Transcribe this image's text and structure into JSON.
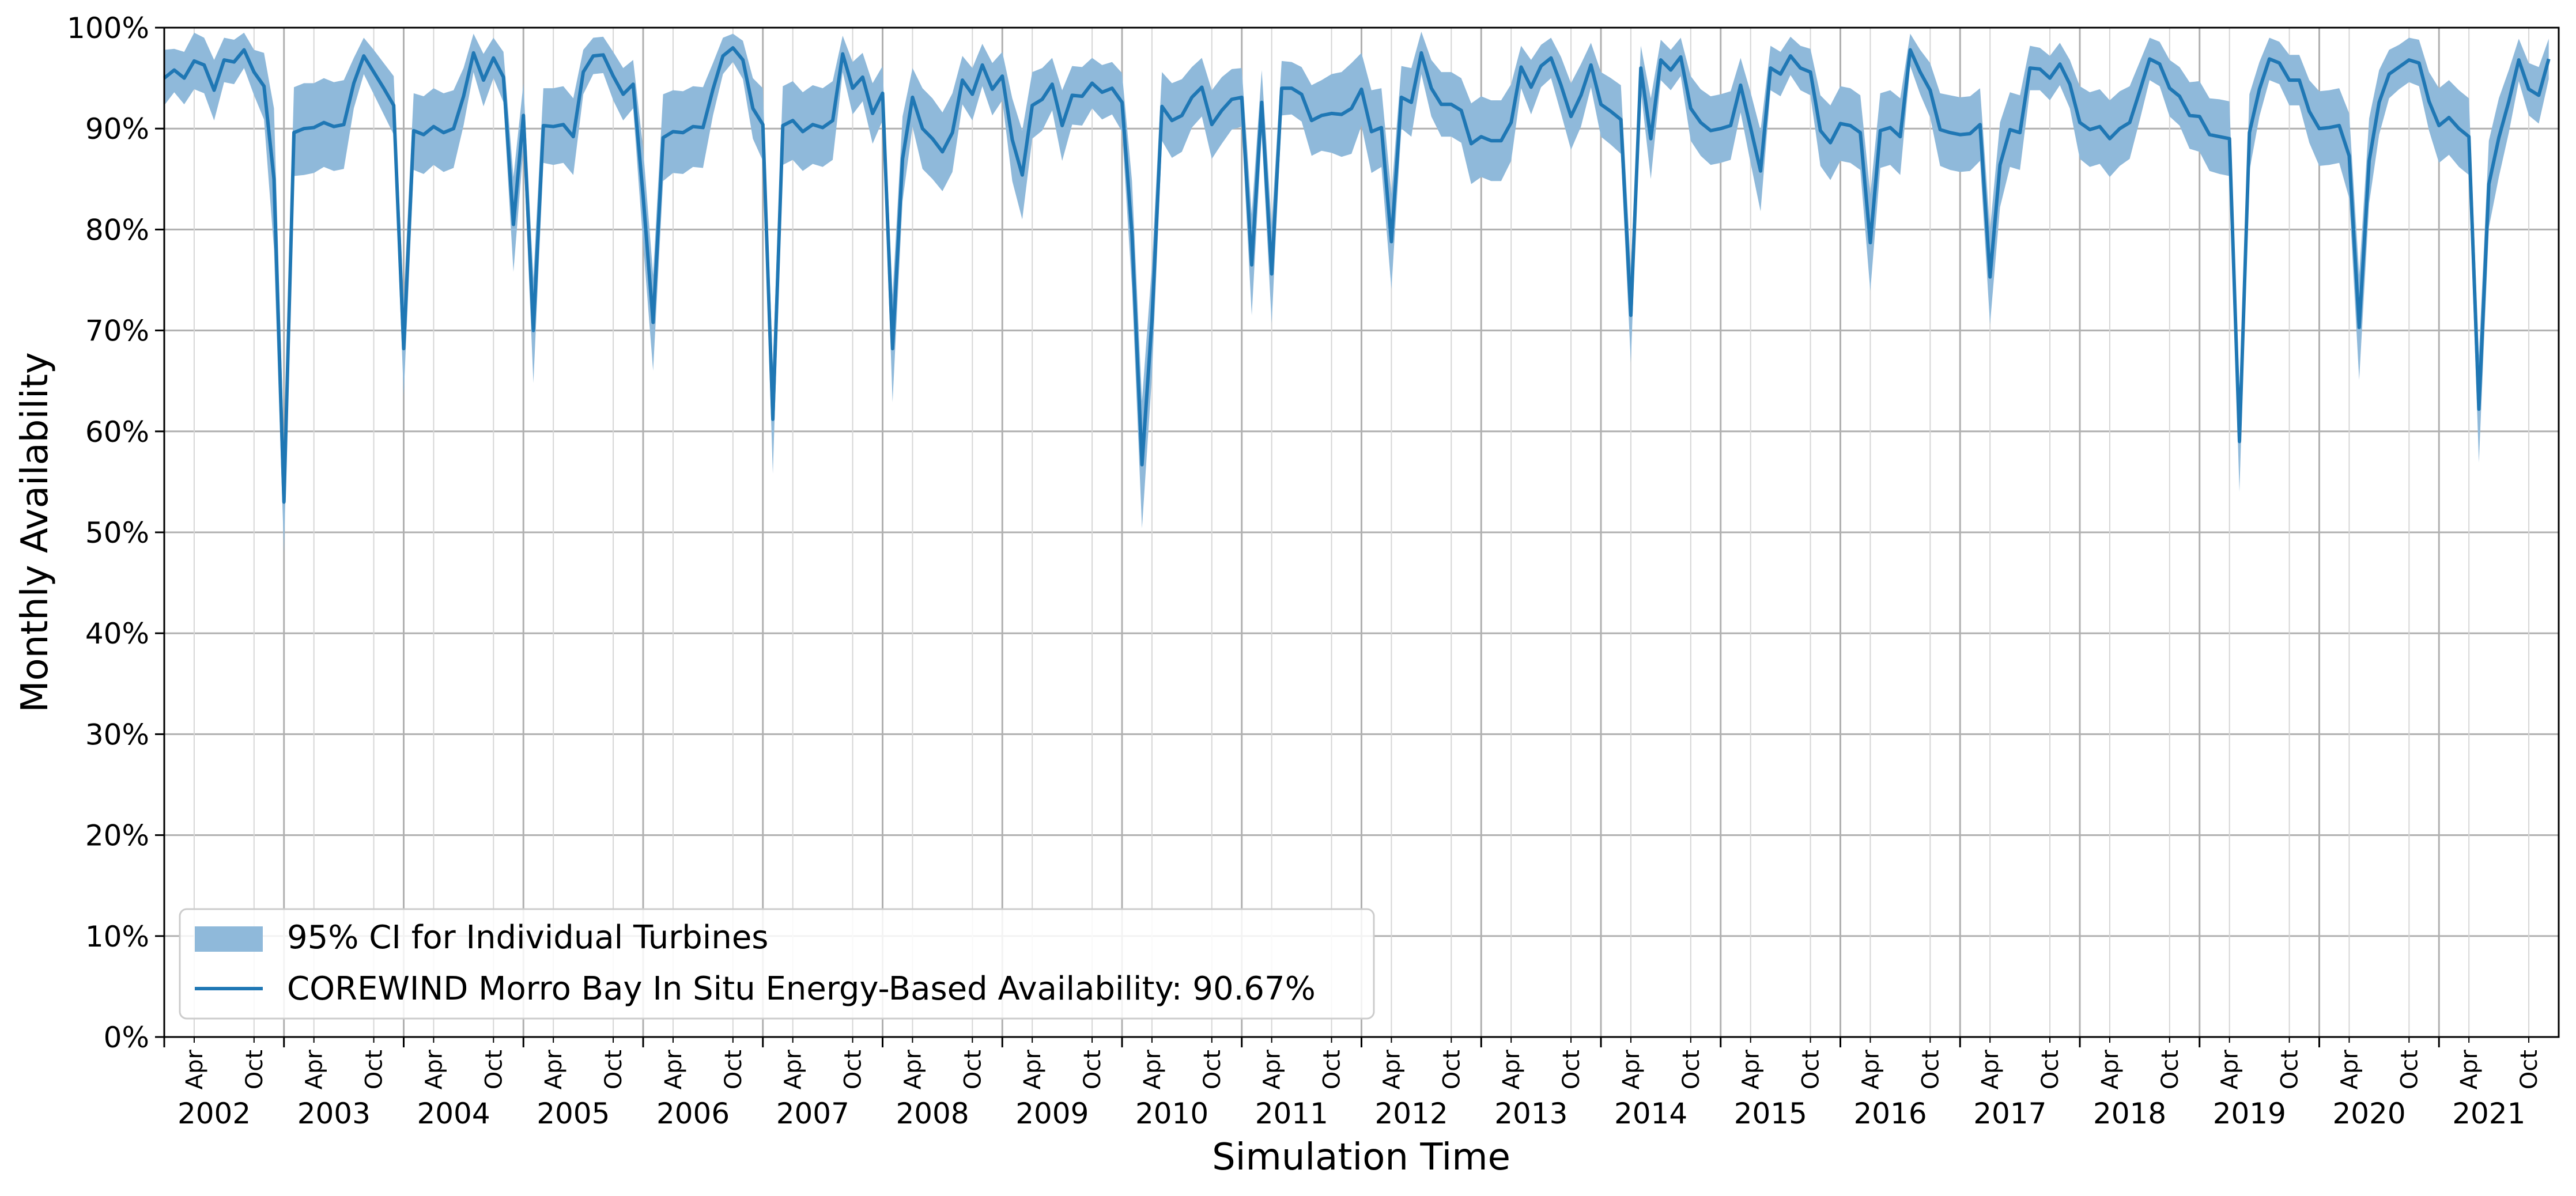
{
  "chart_data": {
    "type": "line",
    "xlabel": "Simulation Time",
    "ylabel": "Monthly Availability",
    "x_range": [
      "2002-01",
      "2021-12"
    ],
    "ylim": [
      0,
      100
    ],
    "y_ticks": [
      "0%",
      "10%",
      "20%",
      "30%",
      "40%",
      "50%",
      "60%",
      "70%",
      "80%",
      "90%",
      "100%"
    ],
    "month_tick_labels": {
      "apr": "Apr",
      "oct": "Oct"
    },
    "years": [
      "2002",
      "2003",
      "2004",
      "2005",
      "2006",
      "2007",
      "2008",
      "2009",
      "2010",
      "2011",
      "2012",
      "2013",
      "2014",
      "2015",
      "2016",
      "2017",
      "2018",
      "2019",
      "2020",
      "2021"
    ],
    "grid": true,
    "legend": {
      "placement": "lower-left",
      "band_label": "95% CI for Individual Turbines",
      "line_label": "COREWIND Morro Bay In Situ Energy-Based Availability: 90.67%"
    },
    "colors": {
      "line": "#1f77b4",
      "band": "#8fb9da",
      "grid": "#b0b0b0"
    },
    "series": [
      {
        "kind": "line",
        "values": [
          95.0,
          95.8,
          95.0,
          96.7,
          96.3,
          93.8,
          96.8,
          96.6,
          97.8,
          95.6,
          94.2,
          85.0,
          53.0,
          89.6,
          90.0,
          90.1,
          90.6,
          90.2,
          90.4,
          94.5,
          97.2,
          95.6,
          94.0,
          92.3,
          68.2,
          89.8,
          89.4,
          90.2,
          89.6,
          90.0,
          93.2,
          97.5,
          94.8,
          97.0,
          95.1,
          80.5,
          91.3,
          70.0,
          90.3,
          90.2,
          90.4,
          89.2,
          95.6,
          97.2,
          97.3,
          95.2,
          93.4,
          94.4,
          83.3,
          70.8,
          89.1,
          89.7,
          89.6,
          90.2,
          90.1,
          93.9,
          97.2,
          98.0,
          96.8,
          92.0,
          90.4,
          61.2,
          90.3,
          90.8,
          89.7,
          90.4,
          90.1,
          90.8,
          97.4,
          94.0,
          95.1,
          91.5,
          93.5,
          68.2,
          87.0,
          93.1,
          90.0,
          89.0,
          87.7,
          89.6,
          94.8,
          93.4,
          96.3,
          93.9,
          95.2,
          88.9,
          85.4,
          92.3,
          92.9,
          94.4,
          90.3,
          93.3,
          93.2,
          94.5,
          93.6,
          94.0,
          92.6,
          79.5,
          56.7,
          71.0,
          92.2,
          90.8,
          91.3,
          93.1,
          94.1,
          90.4,
          91.8,
          92.9,
          93.1,
          76.5,
          92.6,
          75.6,
          94.0,
          94.0,
          93.4,
          90.8,
          91.3,
          91.5,
          91.4,
          92.0,
          93.9,
          89.7,
          90.1,
          78.8,
          93.1,
          92.6,
          97.5,
          94.0,
          92.4,
          92.4,
          91.8,
          88.5,
          89.2,
          88.8,
          88.8,
          90.6,
          96.1,
          94.1,
          96.2,
          97.0,
          94.3,
          91.2,
          93.3,
          96.3,
          92.4,
          91.7,
          90.9,
          71.5,
          96.0,
          89.0,
          96.8,
          95.8,
          97.1,
          92.0,
          90.6,
          89.8,
          90.0,
          90.3,
          94.3,
          90.1,
          85.8,
          96.0,
          95.4,
          97.2,
          96.0,
          95.6,
          89.8,
          88.6,
          90.5,
          90.3,
          89.6,
          78.7,
          89.8,
          90.1,
          89.2,
          97.8,
          95.6,
          93.8,
          89.9,
          89.6,
          89.4,
          89.5,
          90.4,
          75.3,
          86.4,
          89.9,
          89.6,
          96.0,
          95.9,
          95.0,
          96.4,
          94.4,
          90.6,
          89.9,
          90.2,
          89.0,
          90.0,
          90.6,
          93.7,
          96.9,
          96.4,
          94.0,
          93.2,
          91.3,
          91.2,
          89.4,
          89.2,
          89.0,
          59.0,
          89.6,
          93.9,
          96.9,
          96.5,
          94.8,
          94.8,
          91.7,
          90.0,
          90.1,
          90.3,
          87.3,
          70.3,
          86.8,
          92.6,
          95.4,
          96.1,
          96.8,
          96.5,
          92.7,
          90.3,
          91.1,
          90.0,
          89.2,
          62.2,
          84.5,
          89.1,
          92.7,
          96.8,
          93.9,
          93.3,
          96.9
        ]
      },
      {
        "kind": "band",
        "upper": [
          97.8,
          97.9,
          97.6,
          99.5,
          99.0,
          96.8,
          99.0,
          98.8,
          99.5,
          97.8,
          97.5,
          92.0,
          58.0,
          94.1,
          94.5,
          94.5,
          95.0,
          94.6,
          94.8,
          97.0,
          99.0,
          97.8,
          96.5,
          95.2,
          73.0,
          93.5,
          93.2,
          94.0,
          93.5,
          93.8,
          96.0,
          99.4,
          97.4,
          99.0,
          97.6,
          85.2,
          94.5,
          75.2,
          94.0,
          94.0,
          94.2,
          93.0,
          97.8,
          99.0,
          99.1,
          97.6,
          96.0,
          96.8,
          88.0,
          75.5,
          93.4,
          93.8,
          93.7,
          94.2,
          94.1,
          96.5,
          99.0,
          99.4,
          98.7,
          95.0,
          94.0,
          66.5,
          94.2,
          94.7,
          93.6,
          94.3,
          94.0,
          94.7,
          99.2,
          96.6,
          97.5,
          94.5,
          96.2,
          73.5,
          91.2,
          96.0,
          94.0,
          93.0,
          91.6,
          93.5,
          97.2,
          96.0,
          98.4,
          96.5,
          97.6,
          93.0,
          89.8,
          95.6,
          96.0,
          97.0,
          93.8,
          96.2,
          96.1,
          97.0,
          96.3,
          96.6,
          95.5,
          84.8,
          63.0,
          76.5,
          95.6,
          94.5,
          94.9,
          96.1,
          97.0,
          93.8,
          95.1,
          95.9,
          96.0,
          81.5,
          95.8,
          80.5,
          96.7,
          96.6,
          96.1,
          94.3,
          94.8,
          95.4,
          95.6,
          96.5,
          97.5,
          93.8,
          94.0,
          83.5,
          96.2,
          96.0,
          99.6,
          96.8,
          95.6,
          95.6,
          95.0,
          92.5,
          93.2,
          92.8,
          92.8,
          94.4,
          98.2,
          96.8,
          98.3,
          99.0,
          97.1,
          94.5,
          96.4,
          98.5,
          95.6,
          95.0,
          94.3,
          76.2,
          98.2,
          93.0,
          98.8,
          97.8,
          99.0,
          95.2,
          93.9,
          93.2,
          93.4,
          93.7,
          97.0,
          93.6,
          89.8,
          98.2,
          97.6,
          99.1,
          98.2,
          97.9,
          93.3,
          92.3,
          94.2,
          94.0,
          93.3,
          83.5,
          93.5,
          93.8,
          93.0,
          99.4,
          97.8,
          96.5,
          93.5,
          93.3,
          93.1,
          93.2,
          94.0,
          80.0,
          90.6,
          93.6,
          93.3,
          98.2,
          98.0,
          97.2,
          98.5,
          96.8,
          94.2,
          93.6,
          93.9,
          92.8,
          93.7,
          94.2,
          96.6,
          99.0,
          98.6,
          96.8,
          96.1,
          94.6,
          94.7,
          93.0,
          92.9,
          92.7,
          64.0,
          93.4,
          96.6,
          99.0,
          98.6,
          97.3,
          97.3,
          94.8,
          93.7,
          93.8,
          94.0,
          91.5,
          75.5,
          91.0,
          95.8,
          97.8,
          98.3,
          99.0,
          98.8,
          95.6,
          94.0,
          94.8,
          93.8,
          93.0,
          67.5,
          88.8,
          93.0,
          95.8,
          98.9,
          96.5,
          96.1,
          98.9
        ],
        "lower": [
          92.3,
          93.6,
          92.4,
          93.9,
          93.5,
          90.8,
          94.6,
          94.4,
          96.0,
          93.3,
          90.9,
          78.0,
          48.0,
          85.3,
          85.4,
          85.6,
          86.2,
          85.8,
          86.0,
          92.0,
          95.4,
          93.4,
          91.4,
          89.4,
          63.5,
          85.9,
          85.5,
          86.4,
          85.7,
          86.1,
          90.3,
          95.6,
          92.2,
          95.0,
          92.6,
          75.8,
          88.1,
          64.8,
          86.6,
          86.4,
          86.6,
          85.4,
          93.4,
          95.4,
          95.5,
          92.8,
          90.8,
          92.0,
          78.6,
          66.0,
          84.8,
          85.6,
          85.5,
          86.2,
          86.1,
          91.3,
          95.4,
          96.6,
          94.9,
          89.0,
          86.8,
          55.8,
          86.4,
          86.9,
          85.8,
          86.5,
          86.2,
          86.9,
          95.6,
          91.4,
          92.7,
          88.5,
          90.8,
          62.9,
          82.8,
          90.2,
          86.0,
          85.0,
          83.8,
          85.7,
          92.4,
          90.8,
          94.2,
          91.3,
          92.8,
          84.8,
          81.0,
          89.0,
          89.8,
          91.8,
          86.8,
          90.4,
          90.3,
          92.0,
          90.9,
          91.4,
          89.7,
          74.2,
          50.4,
          65.5,
          88.8,
          87.1,
          87.7,
          90.1,
          91.2,
          87.0,
          88.5,
          89.9,
          90.2,
          71.5,
          89.4,
          70.7,
          91.3,
          91.4,
          90.7,
          87.3,
          87.8,
          87.6,
          87.2,
          87.5,
          90.3,
          85.6,
          86.2,
          74.1,
          90.0,
          89.2,
          95.4,
          91.2,
          89.2,
          89.2,
          88.6,
          84.5,
          85.2,
          84.8,
          84.8,
          86.8,
          94.0,
          91.4,
          94.1,
          95.0,
          91.5,
          87.9,
          90.2,
          94.1,
          89.2,
          88.4,
          87.5,
          66.8,
          93.8,
          85.0,
          94.8,
          93.8,
          95.2,
          88.8,
          87.3,
          86.4,
          86.6,
          86.9,
          91.6,
          86.6,
          81.8,
          93.8,
          93.2,
          95.3,
          93.8,
          93.3,
          86.3,
          84.9,
          86.8,
          86.6,
          85.9,
          73.9,
          86.1,
          86.4,
          85.4,
          96.2,
          93.4,
          91.1,
          86.3,
          85.9,
          85.7,
          85.8,
          86.8,
          70.6,
          82.2,
          86.2,
          85.9,
          93.8,
          93.8,
          92.8,
          94.3,
          92.0,
          87.0,
          86.2,
          86.5,
          85.2,
          86.3,
          87.0,
          90.8,
          94.8,
          94.2,
          91.2,
          90.3,
          88.0,
          87.7,
          85.8,
          85.5,
          85.3,
          54.0,
          85.8,
          91.2,
          94.8,
          94.4,
          92.3,
          92.3,
          88.6,
          86.3,
          86.4,
          86.6,
          83.1,
          65.1,
          82.6,
          89.4,
          93.0,
          93.9,
          94.6,
          94.2,
          89.8,
          86.6,
          87.4,
          86.2,
          85.4,
          56.9,
          80.2,
          85.2,
          89.6,
          94.7,
          91.3,
          90.5,
          94.9
        ]
      }
    ]
  }
}
